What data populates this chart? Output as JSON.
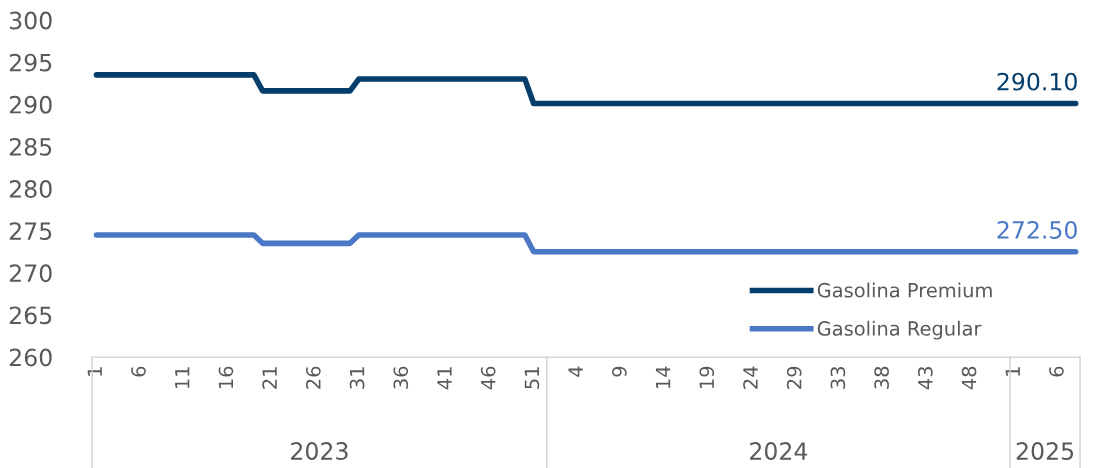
{
  "chart_data": {
    "type": "line",
    "categories": [
      "1",
      null,
      null,
      null,
      null,
      "6",
      null,
      null,
      null,
      null,
      "11",
      null,
      null,
      null,
      null,
      "16",
      null,
      null,
      null,
      null,
      "21",
      null,
      null,
      null,
      null,
      "26",
      null,
      null,
      null,
      null,
      "31",
      null,
      null,
      null,
      null,
      "36",
      null,
      null,
      null,
      null,
      "41",
      null,
      null,
      null,
      null,
      "46",
      null,
      null,
      null,
      null,
      "51",
      null,
      null,
      null,
      null,
      "4",
      null,
      null,
      null,
      null,
      "9",
      null,
      null,
      null,
      null,
      "14",
      null,
      null,
      null,
      null,
      "19",
      null,
      null,
      null,
      null,
      "24",
      null,
      null,
      null,
      null,
      "29",
      null,
      null,
      null,
      null,
      "33",
      null,
      null,
      null,
      null,
      "38",
      null,
      null,
      null,
      null,
      "43",
      null,
      null,
      null,
      null,
      "48",
      null,
      null,
      null,
      null,
      "1",
      null,
      null,
      null,
      null,
      "6",
      null,
      null
    ],
    "series": [
      {
        "name": "Gasolina Premium",
        "color": "#053d6b",
        "values": [
          293.5,
          293.5,
          293.5,
          293.5,
          293.5,
          293.5,
          293.5,
          293.5,
          293.5,
          293.5,
          293.5,
          293.5,
          293.5,
          293.5,
          293.5,
          293.5,
          293.5,
          293.5,
          293.5,
          291.6,
          291.6,
          291.6,
          291.6,
          291.6,
          291.6,
          291.6,
          291.6,
          291.6,
          291.6,
          291.6,
          293.0,
          293.0,
          293.0,
          293.0,
          293.0,
          293.0,
          293.0,
          293.0,
          293.0,
          293.0,
          293.0,
          293.0,
          293.0,
          293.0,
          293.0,
          293.0,
          293.0,
          293.0,
          293.0,
          293.0,
          290.1,
          290.1,
          290.1,
          290.1,
          290.1,
          290.1,
          290.1,
          290.1,
          290.1,
          290.1,
          290.1,
          290.1,
          290.1,
          290.1,
          290.1,
          290.1,
          290.1,
          290.1,
          290.1,
          290.1,
          290.1,
          290.1,
          290.1,
          290.1,
          290.1,
          290.1,
          290.1,
          290.1,
          290.1,
          290.1,
          290.1,
          290.1,
          290.1,
          290.1,
          290.1,
          290.1,
          290.1,
          290.1,
          290.1,
          290.1,
          290.1,
          290.1,
          290.1,
          290.1,
          290.1,
          290.1,
          290.1,
          290.1,
          290.1,
          290.1,
          290.1,
          290.1,
          290.1,
          290.1,
          290.1,
          290.1,
          290.1,
          290.1,
          290.1,
          290.1,
          290.1,
          290.1,
          290.1
        ],
        "value_labels": [
          null,
          null,
          null,
          null,
          null,
          null,
          null,
          null,
          null,
          null,
          null,
          null,
          null,
          null,
          null,
          null,
          null,
          null,
          null,
          null,
          null,
          null,
          null,
          null,
          null,
          null,
          null,
          null,
          null,
          null,
          null,
          null,
          null,
          null,
          null,
          null,
          null,
          null,
          null,
          null,
          null,
          null,
          null,
          null,
          null,
          null,
          null,
          null,
          null,
          null,
          null,
          null,
          null,
          null,
          null,
          null,
          null,
          null,
          null,
          null,
          null,
          null,
          null,
          null,
          null,
          null,
          null,
          null,
          null,
          null,
          null,
          null,
          null,
          null,
          null,
          null,
          null,
          null,
          null,
          null,
          null,
          null,
          null,
          null,
          null,
          null,
          null,
          null,
          null,
          null,
          null,
          null,
          null,
          null,
          null,
          null,
          null,
          null,
          null,
          null,
          null,
          null,
          null,
          null,
          null,
          null,
          null,
          null,
          null,
          null,
          null,
          null,
          "290.10"
        ]
      },
      {
        "name": "Gasolina Regular",
        "color": "#4a78c7",
        "values": [
          274.5,
          274.5,
          274.5,
          274.5,
          274.5,
          274.5,
          274.5,
          274.5,
          274.5,
          274.5,
          274.5,
          274.5,
          274.5,
          274.5,
          274.5,
          274.5,
          274.5,
          274.5,
          274.5,
          273.5,
          273.5,
          273.5,
          273.5,
          273.5,
          273.5,
          273.5,
          273.5,
          273.5,
          273.5,
          273.5,
          274.5,
          274.5,
          274.5,
          274.5,
          274.5,
          274.5,
          274.5,
          274.5,
          274.5,
          274.5,
          274.5,
          274.5,
          274.5,
          274.5,
          274.5,
          274.5,
          274.5,
          274.5,
          274.5,
          274.5,
          272.5,
          272.5,
          272.5,
          272.5,
          272.5,
          272.5,
          272.5,
          272.5,
          272.5,
          272.5,
          272.5,
          272.5,
          272.5,
          272.5,
          272.5,
          272.5,
          272.5,
          272.5,
          272.5,
          272.5,
          272.5,
          272.5,
          272.5,
          272.5,
          272.5,
          272.5,
          272.5,
          272.5,
          272.5,
          272.5,
          272.5,
          272.5,
          272.5,
          272.5,
          272.5,
          272.5,
          272.5,
          272.5,
          272.5,
          272.5,
          272.5,
          272.5,
          272.5,
          272.5,
          272.5,
          272.5,
          272.5,
          272.5,
          272.5,
          272.5,
          272.5,
          272.5,
          272.5,
          272.5,
          272.5,
          272.5,
          272.5,
          272.5,
          272.5,
          272.5,
          272.5,
          272.5,
          272.5
        ],
        "value_labels": [
          null,
          null,
          null,
          null,
          null,
          null,
          null,
          null,
          null,
          null,
          null,
          null,
          null,
          null,
          null,
          null,
          null,
          null,
          null,
          null,
          null,
          null,
          null,
          null,
          null,
          null,
          null,
          null,
          null,
          null,
          null,
          null,
          null,
          null,
          null,
          null,
          null,
          null,
          null,
          null,
          null,
          null,
          null,
          null,
          null,
          null,
          null,
          null,
          null,
          null,
          null,
          null,
          null,
          null,
          null,
          null,
          null,
          null,
          null,
          null,
          null,
          null,
          null,
          null,
          null,
          null,
          null,
          null,
          null,
          null,
          null,
          null,
          null,
          null,
          null,
          null,
          null,
          null,
          null,
          null,
          null,
          null,
          null,
          null,
          null,
          null,
          null,
          null,
          null,
          null,
          null,
          null,
          null,
          null,
          null,
          null,
          null,
          null,
          null,
          null,
          null,
          null,
          null,
          null,
          null,
          null,
          null,
          null,
          null,
          null,
          null,
          null,
          "272.50"
        ]
      }
    ],
    "ylim": [
      260,
      300
    ],
    "yticks": [
      260,
      265,
      270,
      275,
      280,
      285,
      290,
      295,
      300
    ],
    "legend": "bottom right",
    "annotations": [
      "2023",
      "2024",
      "2025"
    ]
  }
}
